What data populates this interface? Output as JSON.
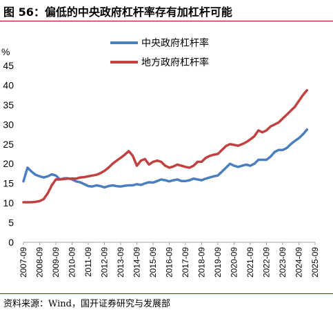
{
  "title": "图 56：偏低的中央政府杠杆率存有加杠杆可能",
  "source": "资料来源：Wind，国开证券研究与发展部",
  "colors": {
    "central": "#4a7ebf",
    "local": "#c0413f",
    "rule": "#c00000"
  },
  "chart_data": {
    "type": "line",
    "ylabel": "%",
    "ylim": [
      0,
      45
    ],
    "yticks": [
      "0",
      "5",
      "10",
      "15",
      "20",
      "25",
      "30",
      "35",
      "40",
      "45"
    ],
    "xticks": [
      "2007-09",
      "2008-09",
      "2009-09",
      "2010-09",
      "2011-09",
      "2012-09",
      "2013-09",
      "2014-09",
      "2015-09",
      "2016-09",
      "2017-09",
      "2018-09",
      "2019-09",
      "2020-09",
      "2021-09",
      "2022-09",
      "2023-09",
      "2024-09",
      "2025-09"
    ],
    "legend_position": "top",
    "series": [
      {
        "name": "中央政府杠杆率",
        "color": "#4a7ebf",
        "points": [
          [
            2007.5,
            15.5
          ],
          [
            2007.75,
            19.0
          ],
          [
            2008.0,
            18.0
          ],
          [
            2008.25,
            17.2
          ],
          [
            2008.5,
            16.8
          ],
          [
            2008.75,
            16.5
          ],
          [
            2009.0,
            16.8
          ],
          [
            2009.25,
            17.3
          ],
          [
            2009.5,
            17.0
          ],
          [
            2009.75,
            16.0
          ],
          [
            2010.0,
            16.3
          ],
          [
            2010.25,
            16.3
          ],
          [
            2010.5,
            16.0
          ],
          [
            2010.75,
            15.5
          ],
          [
            2011.0,
            15.3
          ],
          [
            2011.25,
            14.8
          ],
          [
            2011.5,
            14.3
          ],
          [
            2011.75,
            14.2
          ],
          [
            2012.0,
            14.5
          ],
          [
            2012.25,
            14.3
          ],
          [
            2012.5,
            14.0
          ],
          [
            2012.75,
            14.3
          ],
          [
            2013.0,
            14.5
          ],
          [
            2013.25,
            14.3
          ],
          [
            2013.5,
            14.2
          ],
          [
            2013.75,
            14.4
          ],
          [
            2014.0,
            14.5
          ],
          [
            2014.25,
            14.5
          ],
          [
            2014.5,
            14.8
          ],
          [
            2014.75,
            14.6
          ],
          [
            2015.0,
            15.0
          ],
          [
            2015.25,
            15.3
          ],
          [
            2015.5,
            15.2
          ],
          [
            2015.75,
            15.6
          ],
          [
            2016.0,
            16.0
          ],
          [
            2016.25,
            15.8
          ],
          [
            2016.5,
            15.5
          ],
          [
            2016.75,
            15.8
          ],
          [
            2017.0,
            16.0
          ],
          [
            2017.25,
            15.6
          ],
          [
            2017.5,
            15.6
          ],
          [
            2017.75,
            15.8
          ],
          [
            2018.0,
            16.2
          ],
          [
            2018.25,
            16.0
          ],
          [
            2018.5,
            15.8
          ],
          [
            2018.75,
            16.2
          ],
          [
            2019.0,
            16.5
          ],
          [
            2019.25,
            16.8
          ],
          [
            2019.5,
            17.0
          ],
          [
            2019.75,
            18.0
          ],
          [
            2020.0,
            19.0
          ],
          [
            2020.25,
            20.0
          ],
          [
            2020.5,
            19.5
          ],
          [
            2020.75,
            19.2
          ],
          [
            2021.0,
            19.5
          ],
          [
            2021.25,
            19.8
          ],
          [
            2021.5,
            19.5
          ],
          [
            2021.75,
            20.0
          ],
          [
            2022.0,
            21.0
          ],
          [
            2022.25,
            21.0
          ],
          [
            2022.5,
            21.0
          ],
          [
            2022.75,
            21.8
          ],
          [
            2023.0,
            23.0
          ],
          [
            2023.25,
            23.5
          ],
          [
            2023.5,
            23.5
          ],
          [
            2023.75,
            24.0
          ],
          [
            2024.0,
            25.0
          ],
          [
            2024.25,
            25.8
          ],
          [
            2024.5,
            26.5
          ],
          [
            2024.75,
            27.5
          ],
          [
            2025.0,
            28.7
          ]
        ]
      },
      {
        "name": "地方政府杠杆率",
        "color": "#c0413f",
        "points": [
          [
            2007.5,
            10.2
          ],
          [
            2007.75,
            10.2
          ],
          [
            2008.0,
            10.2
          ],
          [
            2008.25,
            10.3
          ],
          [
            2008.5,
            10.5
          ],
          [
            2008.75,
            11.0
          ],
          [
            2009.0,
            12.5
          ],
          [
            2009.25,
            14.5
          ],
          [
            2009.5,
            16.0
          ],
          [
            2009.75,
            16.0
          ],
          [
            2010.0,
            16.1
          ],
          [
            2010.25,
            16.2
          ],
          [
            2010.5,
            16.2
          ],
          [
            2010.75,
            16.2
          ],
          [
            2011.0,
            16.5
          ],
          [
            2011.25,
            16.6
          ],
          [
            2011.5,
            16.8
          ],
          [
            2011.75,
            17.0
          ],
          [
            2012.0,
            17.2
          ],
          [
            2012.25,
            17.6
          ],
          [
            2012.5,
            18.2
          ],
          [
            2012.75,
            19.0
          ],
          [
            2013.0,
            20.0
          ],
          [
            2013.25,
            20.8
          ],
          [
            2013.5,
            21.5
          ],
          [
            2013.75,
            22.3
          ],
          [
            2014.0,
            23.2
          ],
          [
            2014.25,
            22.0
          ],
          [
            2014.5,
            19.5
          ],
          [
            2014.75,
            20.8
          ],
          [
            2015.0,
            21.2
          ],
          [
            2015.25,
            19.8
          ],
          [
            2015.5,
            20.5
          ],
          [
            2015.75,
            20.8
          ],
          [
            2016.0,
            20.5
          ],
          [
            2016.25,
            19.5
          ],
          [
            2016.5,
            19.0
          ],
          [
            2016.75,
            19.3
          ],
          [
            2017.0,
            19.8
          ],
          [
            2017.25,
            19.5
          ],
          [
            2017.5,
            19.2
          ],
          [
            2017.75,
            19.0
          ],
          [
            2018.0,
            19.5
          ],
          [
            2018.25,
            20.5
          ],
          [
            2018.5,
            20.5
          ],
          [
            2018.75,
            21.5
          ],
          [
            2019.0,
            22.0
          ],
          [
            2019.25,
            22.3
          ],
          [
            2019.5,
            22.5
          ],
          [
            2019.75,
            23.5
          ],
          [
            2020.0,
            24.5
          ],
          [
            2020.25,
            25.0
          ],
          [
            2020.5,
            24.8
          ],
          [
            2020.75,
            24.6
          ],
          [
            2021.0,
            25.0
          ],
          [
            2021.25,
            25.5
          ],
          [
            2021.5,
            26.2
          ],
          [
            2021.75,
            27.0
          ],
          [
            2022.0,
            28.5
          ],
          [
            2022.25,
            28.0
          ],
          [
            2022.5,
            28.5
          ],
          [
            2022.75,
            29.5
          ],
          [
            2023.0,
            30.0
          ],
          [
            2023.25,
            30.5
          ],
          [
            2023.5,
            31.5
          ],
          [
            2023.75,
            32.5
          ],
          [
            2024.0,
            33.5
          ],
          [
            2024.25,
            34.5
          ],
          [
            2024.5,
            36.0
          ],
          [
            2024.75,
            37.5
          ],
          [
            2025.0,
            38.7
          ]
        ]
      }
    ]
  }
}
